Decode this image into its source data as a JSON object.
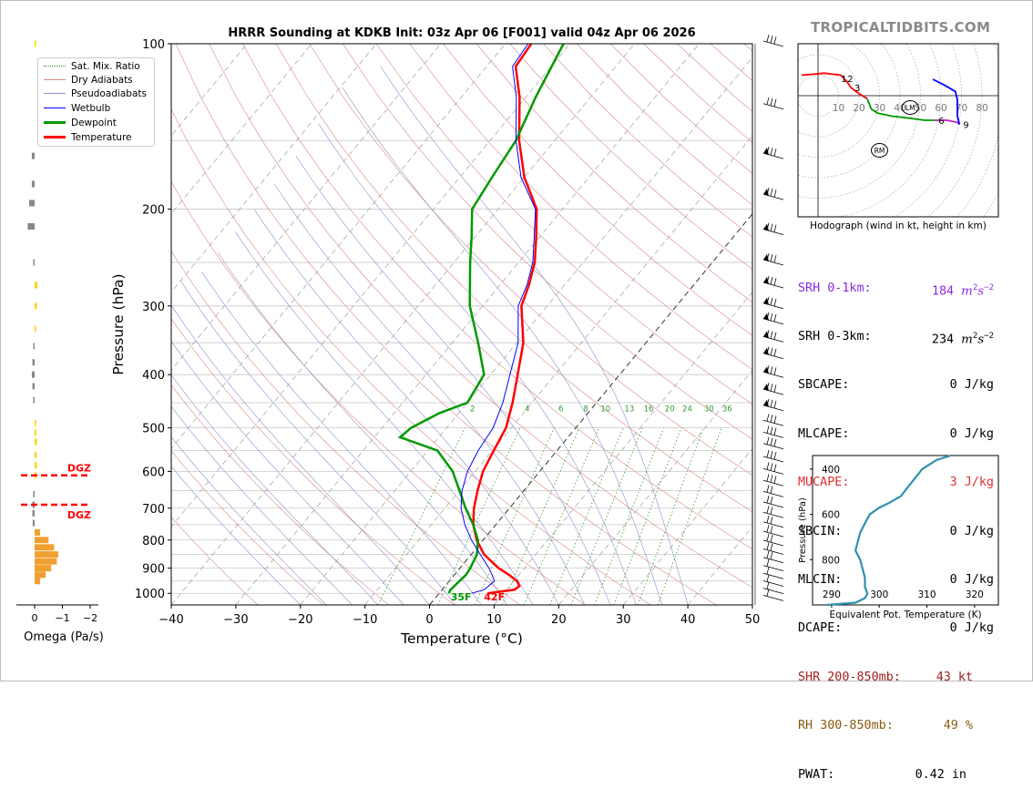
{
  "site": "TROPICALTIDBITS.COM",
  "chart_data": [
    {
      "type": "line",
      "subtype": "skew-t log-p sounding",
      "title": "HRRR Sounding at KDKB Init: 03z Apr 06 [F001] valid 04z Apr 06 2026",
      "xlabel": "Temperature (°C)",
      "ylabel": "Pressure (hPa)",
      "xlim": [
        -40,
        50
      ],
      "ylim": [
        1050,
        100
      ],
      "y_scale": "log",
      "x_ticks": [
        "−40",
        "−30",
        "−20",
        "−10",
        "0",
        "10",
        "20",
        "30",
        "40",
        "50"
      ],
      "y_ticks": [
        "100",
        "200",
        "300",
        "400",
        "500",
        "600",
        "700",
        "800",
        "900",
        "1000"
      ],
      "legend": [
        "Sat. Mix. Ratio",
        "Dry Adiabats",
        "Pseudoadiabats",
        "Wetbulb",
        "Dewpoint",
        "Temperature"
      ],
      "legend_position": "top-left",
      "mixing_ratio_labels": [
        "2",
        "4",
        "6",
        "8",
        "10",
        "13",
        "16",
        "20",
        "24",
        "30",
        "36"
      ],
      "surface_labels": {
        "dewpoint": "35F",
        "temperature": "42F"
      },
      "colors": {
        "temperature": "#ff0000",
        "dewpoint": "#009900",
        "wetbulb": "#0000ff",
        "dry": "#d88888",
        "moist": "#9090d0",
        "mix": "#339933"
      },
      "series": [
        {
          "name": "Temperature",
          "points": [
            [
              1000,
              7.5
            ],
            [
              985,
              11.2
            ],
            [
              970,
              11.5
            ],
            [
              950,
              10.5
            ],
            [
              925,
              8.4
            ],
            [
              900,
              6.0
            ],
            [
              850,
              2.0
            ],
            [
              800,
              -1.0
            ],
            [
              750,
              -3.5
            ],
            [
              700,
              -5.5
            ],
            [
              650,
              -7.2
            ],
            [
              600,
              -8.8
            ],
            [
              550,
              -9.8
            ],
            [
              500,
              -10.8
            ],
            [
              450,
              -13.0
            ],
            [
              400,
              -15.8
            ],
            [
              350,
              -19.0
            ],
            [
              300,
              -24.0
            ],
            [
              275,
              -25.5
            ],
            [
              250,
              -27.5
            ],
            [
              225,
              -30.5
            ],
            [
              200,
              -34.0
            ],
            [
              175,
              -40.0
            ],
            [
              150,
              -45.5
            ],
            [
              125,
              -51.0
            ],
            [
              110,
              -55.5
            ],
            [
              100,
              -56.0
            ]
          ]
        },
        {
          "name": "Dewpoint",
          "points": [
            [
              1000,
              1.5
            ],
            [
              985,
              1.3
            ],
            [
              960,
              1.5
            ],
            [
              925,
              1.8
            ],
            [
              900,
              1.6
            ],
            [
              850,
              0.9
            ],
            [
              800,
              -0.8
            ],
            [
              750,
              -3.5
            ],
            [
              700,
              -6.8
            ],
            [
              650,
              -10.0
            ],
            [
              600,
              -13.5
            ],
            [
              550,
              -18.5
            ],
            [
              520,
              -26.0
            ],
            [
              500,
              -25.5
            ],
            [
              470,
              -23.0
            ],
            [
              450,
              -20.0
            ],
            [
              400,
              -21.0
            ],
            [
              350,
              -26.0
            ],
            [
              300,
              -32.0
            ],
            [
              250,
              -37.5
            ],
            [
              225,
              -40.5
            ],
            [
              200,
              -44.0
            ],
            [
              175,
              -45.0
            ],
            [
              150,
              -46.0
            ],
            [
              125,
              -48.5
            ],
            [
              100,
              -51.0
            ]
          ]
        },
        {
          "name": "Wetbulb",
          "points": [
            [
              1000,
              5.0
            ],
            [
              985,
              6.5
            ],
            [
              950,
              7.0
            ],
            [
              925,
              5.8
            ],
            [
              900,
              4.5
            ],
            [
              850,
              1.4
            ],
            [
              800,
              -1.8
            ],
            [
              750,
              -4.8
            ],
            [
              700,
              -7.5
            ],
            [
              650,
              -9.6
            ],
            [
              600,
              -11.2
            ],
            [
              550,
              -12.2
            ],
            [
              500,
              -12.8
            ],
            [
              450,
              -14.5
            ],
            [
              400,
              -17.0
            ],
            [
              350,
              -19.8
            ],
            [
              300,
              -24.5
            ],
            [
              275,
              -25.8
            ],
            [
              250,
              -27.8
            ],
            [
              225,
              -30.8
            ],
            [
              200,
              -34.2
            ],
            [
              175,
              -40.5
            ],
            [
              150,
              -46.0
            ],
            [
              125,
              -51.5
            ],
            [
              110,
              -56.0
            ],
            [
              100,
              -56.5
            ]
          ]
        }
      ]
    },
    {
      "type": "bar",
      "title": "",
      "xlabel": "Omega (Pa/s)",
      "xlim": [
        0.2,
        -2.0
      ],
      "x_ticks": [
        "0",
        "−1",
        "−2"
      ],
      "dgz_label": "DGZ",
      "dgz_pressures": [
        610,
        690
      ],
      "values": [
        {
          "p": 100,
          "w": -0.05,
          "c": "#ffd400"
        },
        {
          "p": 160,
          "w": 0.1,
          "c": "#888"
        },
        {
          "p": 180,
          "w": 0.1,
          "c": "#888"
        },
        {
          "p": 195,
          "w": 0.2,
          "c": "#888"
        },
        {
          "p": 215,
          "w": 0.25,
          "c": "#888"
        },
        {
          "p": 250,
          "w": 0.05,
          "c": "#888"
        },
        {
          "p": 275,
          "w": -0.1,
          "c": "#ffd400"
        },
        {
          "p": 300,
          "w": -0.08,
          "c": "#ffd400"
        },
        {
          "p": 330,
          "w": -0.03,
          "c": "#ffd400"
        },
        {
          "p": 355,
          "w": 0.05,
          "c": "#888"
        },
        {
          "p": 380,
          "w": 0.08,
          "c": "#888"
        },
        {
          "p": 400,
          "w": 0.1,
          "c": "#888"
        },
        {
          "p": 420,
          "w": 0.08,
          "c": "#888"
        },
        {
          "p": 445,
          "w": 0.05,
          "c": "#888"
        },
        {
          "p": 490,
          "w": -0.05,
          "c": "#ffd400"
        },
        {
          "p": 510,
          "w": -0.06,
          "c": "#ffd400"
        },
        {
          "p": 530,
          "w": -0.08,
          "c": "#ffd400"
        },
        {
          "p": 560,
          "w": -0.07,
          "c": "#ffd400"
        },
        {
          "p": 585,
          "w": -0.08,
          "c": "#ffd400"
        },
        {
          "p": 610,
          "w": -0.06,
          "c": "#ffd400"
        },
        {
          "p": 660,
          "w": 0.05,
          "c": "#888"
        },
        {
          "p": 690,
          "w": 0.08,
          "c": "#888"
        },
        {
          "p": 715,
          "w": 0.08,
          "c": "#888"
        },
        {
          "p": 745,
          "w": 0.07,
          "c": "#888"
        },
        {
          "p": 775,
          "w": -0.2,
          "c": "#f0a030"
        },
        {
          "p": 800,
          "w": -0.5,
          "c": "#f0a030"
        },
        {
          "p": 825,
          "w": -0.7,
          "c": "#f0a030"
        },
        {
          "p": 850,
          "w": -0.85,
          "c": "#f0a030"
        },
        {
          "p": 875,
          "w": -0.8,
          "c": "#f0a030"
        },
        {
          "p": 900,
          "w": -0.6,
          "c": "#f0a030"
        },
        {
          "p": 925,
          "w": -0.4,
          "c": "#f0a030"
        },
        {
          "p": 950,
          "w": -0.2,
          "c": "#f0a030"
        }
      ]
    },
    {
      "type": "line",
      "subtype": "hodograph",
      "title": "",
      "xlabel": "Hodograph (wind in kt, height in km)",
      "rings_kt": [
        "10",
        "20",
        "30",
        "40",
        "50",
        "60",
        "70",
        "80"
      ],
      "height_labels": [
        "1",
        "2",
        "3",
        "6",
        "9"
      ],
      "storm_motion_labels": [
        "LM",
        "RM"
      ],
      "series": [
        {
          "name": "0-1km",
          "color": "#ff0000",
          "points": [
            [
              -8,
              10
            ],
            [
              -2,
              10.5
            ],
            [
              3,
              11
            ],
            [
              7,
              10.5
            ],
            [
              11,
              10
            ],
            [
              13,
              8
            ]
          ]
        },
        {
          "name": "1-3km",
          "color": "#ff0000",
          "points": [
            [
              13,
              8
            ],
            [
              14,
              7
            ],
            [
              16,
              4
            ]
          ]
        },
        {
          "name": "3km",
          "color": "#ff0000",
          "points": [
            [
              16,
              4
            ],
            [
              20,
              1
            ],
            [
              24,
              -1.5
            ]
          ]
        },
        {
          "name": "3-6km",
          "color": "#009900",
          "points": [
            [
              24,
              -1.5
            ],
            [
              26,
              -6.5
            ],
            [
              29,
              -8.5
            ],
            [
              36,
              -10
            ],
            [
              45,
              -11
            ],
            [
              52,
              -12
            ],
            [
              57,
              -12
            ]
          ]
        },
        {
          "name": "6-9km",
          "color": "#c020c0",
          "points": [
            [
              57,
              -12
            ],
            [
              63,
              -12
            ],
            [
              68,
              -13
            ],
            [
              69,
              -14
            ]
          ]
        },
        {
          "name": "9-12km",
          "color": "#0000ff",
          "points": [
            [
              69,
              -14
            ],
            [
              68,
              -10
            ],
            [
              68,
              -5
            ],
            [
              68,
              -2
            ],
            [
              67,
              2
            ],
            [
              62,
              5
            ],
            [
              56,
              8
            ]
          ]
        }
      ]
    },
    {
      "type": "line",
      "title": "",
      "xlabel": "Equivalent Pot. Temperature (K)",
      "ylabel": "Pressure (hPa)",
      "xlim": [
        286,
        325
      ],
      "ylim": [
        1000,
        340
      ],
      "x_ticks": [
        "290",
        "300",
        "310",
        "320"
      ],
      "y_ticks": [
        "400",
        "600",
        "800"
      ],
      "series": [
        {
          "name": "Theta-e",
          "color": "#3090b0",
          "points": [
            [
              1000,
              289
            ],
            [
              990,
              295
            ],
            [
              970,
              297
            ],
            [
              950,
              297.5
            ],
            [
              920,
              297
            ],
            [
              880,
              297
            ],
            [
              840,
              296.5
            ],
            [
              800,
              296
            ],
            [
              760,
              295
            ],
            [
              720,
              295.5
            ],
            [
              680,
              296
            ],
            [
              640,
              297
            ],
            [
              600,
              298
            ],
            [
              570,
              300
            ],
            [
              550,
              302
            ],
            [
              520,
              304.5
            ],
            [
              480,
              306
            ],
            [
              440,
              307.5
            ],
            [
              400,
              309
            ],
            [
              360,
              312
            ],
            [
              340,
              315
            ]
          ]
        }
      ]
    }
  ],
  "stats": [
    {
      "label": "SRH 0-1km:",
      "value": "184",
      "unit": "m2s-2",
      "color": "#8a2be2"
    },
    {
      "label": "SRH 0-3km:",
      "value": "234",
      "unit": "m2s-2",
      "color": "#000000"
    },
    {
      "label": "SBCAPE:",
      "value": "0 J/kg",
      "color": "#000000"
    },
    {
      "label": "MLCAPE:",
      "value": "0 J/kg",
      "color": "#000000"
    },
    {
      "label": "MUCAPE:",
      "value": "3 J/kg",
      "color": "#e03030"
    },
    {
      "label": "SBCIN:",
      "value": "0 J/kg",
      "color": "#000000"
    },
    {
      "label": "MLCIN:",
      "value": "0 J/kg",
      "color": "#000000"
    },
    {
      "label": "DCAPE:",
      "value": "0 J/kg",
      "color": "#000000"
    },
    {
      "label": "SHR 200-850mb:",
      "value": "43 kt",
      "color": "#a02020"
    },
    {
      "label": "RH 300-850mb:",
      "value": "49 %",
      "color": "#8a5a10"
    },
    {
      "label": "PWAT:",
      "value": "0.42 in",
      "color": "#000000"
    }
  ]
}
